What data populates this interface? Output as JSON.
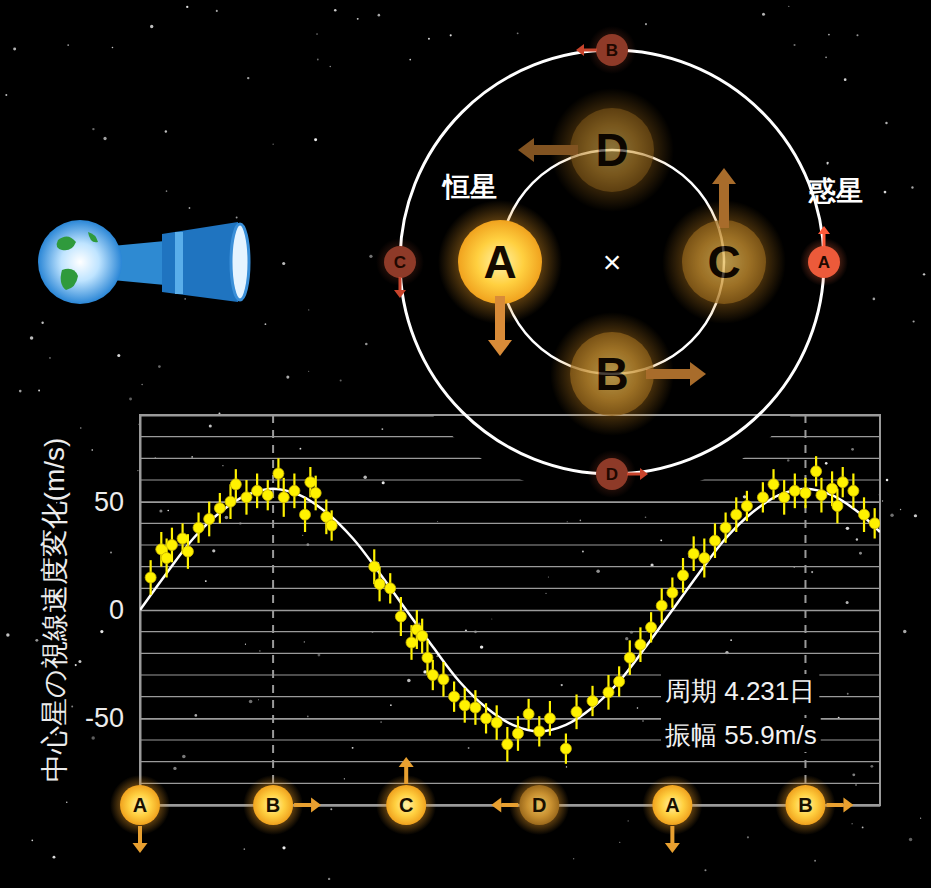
{
  "chart_data": {
    "type": "scatter",
    "ylabel": "中心星の視線速度変化(m/s)",
    "xlim": [
      0,
      1.39
    ],
    "xticks": [
      0.25,
      1.25
    ],
    "ylim": [
      -90,
      90
    ],
    "yticks": [
      -50,
      0,
      50
    ],
    "minor_yticks": [
      -90,
      -80,
      -70,
      -60,
      -40,
      -30,
      -20,
      -10,
      10,
      20,
      30,
      40,
      60,
      70,
      80,
      90
    ],
    "grid": true,
    "tick_labels": "y",
    "series": [
      {
        "type": "scatter",
        "color": "#fff200",
        "marker": "circle",
        "x": [
          0.02,
          0.04,
          0.05,
          0.06,
          0.08,
          0.09,
          0.11,
          0.13,
          0.15,
          0.17,
          0.18,
          0.2,
          0.22,
          0.24,
          0.26,
          0.27,
          0.29,
          0.31,
          0.32,
          0.33,
          0.35,
          0.36,
          0.44,
          0.45,
          0.47,
          0.49,
          0.51,
          0.52,
          0.53,
          0.54,
          0.55,
          0.57,
          0.59,
          0.61,
          0.63,
          0.65,
          0.67,
          0.69,
          0.71,
          0.73,
          0.75,
          0.77,
          0.8,
          0.82,
          0.85,
          0.88,
          0.9,
          0.92,
          0.94,
          0.96,
          0.98,
          1,
          1.02,
          1.04,
          1.06,
          1.08,
          1.1,
          1.12,
          1.14,
          1.17,
          1.19,
          1.21,
          1.23,
          1.25,
          1.27,
          1.28,
          1.3,
          1.31,
          1.32,
          1.34,
          1.36,
          1.38
        ],
        "values": [
          15,
          28,
          24,
          30,
          33,
          27,
          38,
          42,
          47,
          50,
          58,
          52,
          55,
          53,
          63,
          52,
          55,
          44,
          59,
          54,
          43,
          39,
          20,
          12,
          10,
          -3,
          -15,
          -9,
          -12,
          -22,
          -30,
          -32,
          -40,
          -44,
          -45,
          -50,
          -52,
          -62,
          -57,
          -48,
          -56,
          -50,
          -64,
          -47,
          -42,
          -38,
          -33,
          -22,
          -16,
          -8,
          2,
          8,
          16,
          26,
          24,
          32,
          38,
          44,
          48,
          52,
          58,
          52,
          55,
          54,
          64,
          53,
          56,
          48,
          59,
          55,
          44,
          40
        ],
        "errors": [
          8,
          8,
          9,
          8,
          7,
          8,
          7,
          8,
          7,
          8,
          7,
          8,
          8,
          7,
          7,
          9,
          8,
          8,
          7,
          8,
          8,
          7,
          8,
          8,
          7,
          9,
          8,
          9,
          8,
          8,
          7,
          8,
          7,
          8,
          8,
          7,
          8,
          8,
          8,
          7,
          7,
          8,
          7,
          8,
          7,
          8,
          7,
          8,
          8,
          7,
          8,
          7,
          8,
          8,
          9,
          8,
          7,
          8,
          7,
          7,
          7,
          8,
          8,
          7,
          7,
          8,
          8,
          8,
          7,
          8,
          8,
          7
        ]
      },
      {
        "type": "line",
        "color": "#ffffff",
        "line_style": "solid",
        "x": [
          0,
          0.05,
          0.1,
          0.15,
          0.2,
          0.25,
          0.3,
          0.35,
          0.4,
          0.45,
          0.5,
          0.55,
          0.6,
          0.65,
          0.7,
          0.75,
          0.8,
          0.85,
          0.9,
          0.95,
          1,
          1.05,
          1.1,
          1.15,
          1.2,
          1.25,
          1.3,
          1.35,
          1.39
        ],
        "values": [
          0,
          17,
          33,
          45,
          53,
          56,
          53,
          45,
          33,
          17,
          0,
          -17,
          -33,
          -45,
          -53,
          -56,
          -53,
          -45,
          -33,
          -17,
          0,
          17,
          33,
          45,
          53,
          56,
          53,
          45,
          36
        ]
      }
    ],
    "annotations": [
      "周期 4.231日",
      "振幅 55.9m/s"
    ],
    "phase_markers": {
      "x": [
        0,
        0.25,
        0.5,
        0.75,
        1,
        1.25
      ],
      "labels": [
        "A",
        "B",
        "C",
        "D",
        "A",
        "B"
      ]
    }
  },
  "orbit_diagram": {
    "star_label": "恒星",
    "planet_label": "惑星",
    "center_mark": "×",
    "positions": [
      "A",
      "B",
      "C",
      "D"
    ]
  }
}
